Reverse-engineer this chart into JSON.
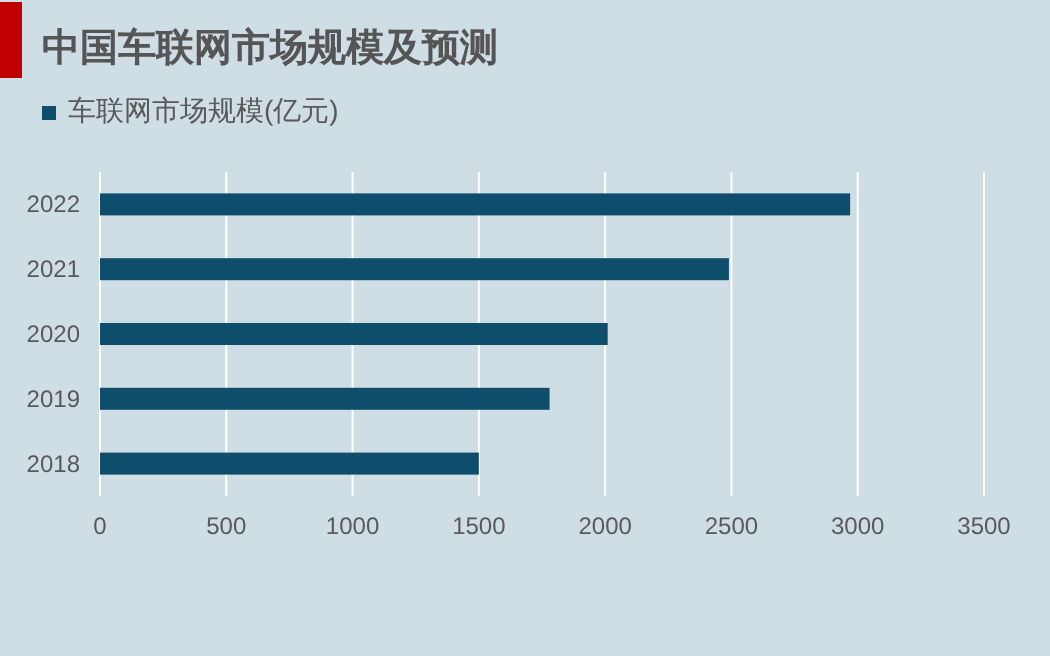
{
  "chart_data": {
    "type": "bar",
    "orientation": "horizontal",
    "title": "中国车联网市场规模及预测",
    "categories": [
      "2022",
      "2021",
      "2020",
      "2019",
      "2018"
    ],
    "series": [
      {
        "name": "车联网市场规模(亿元)",
        "color": "#0e4d6b",
        "values": [
          2970,
          2490,
          2010,
          1780,
          1500
        ]
      }
    ],
    "xlim": [
      0,
      3500
    ],
    "xticks": [
      0,
      500,
      1000,
      1500,
      2000,
      2500,
      3000,
      3500
    ],
    "grid": "x",
    "legend": "top left"
  }
}
